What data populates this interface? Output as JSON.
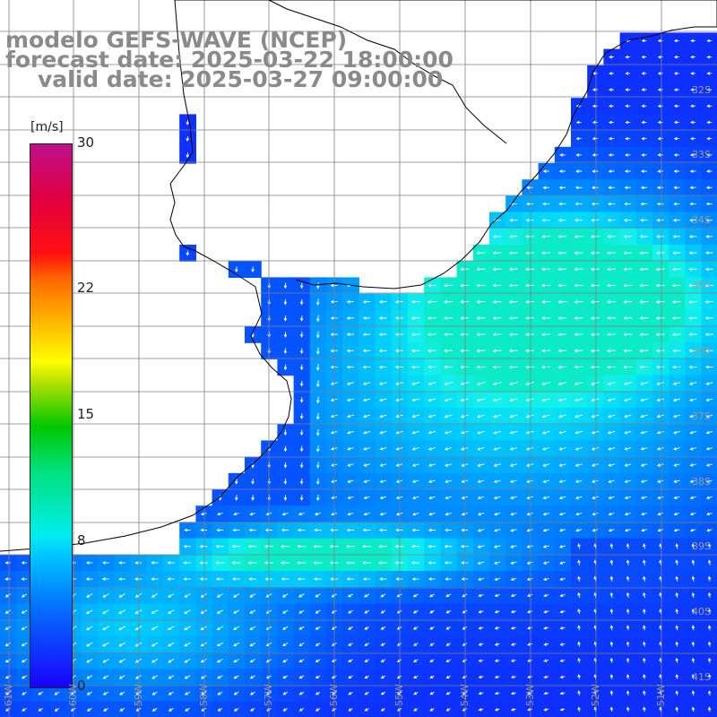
{
  "title": {
    "model": "modelo GEFS-WAVE (NCEP)",
    "forecast": "forecast date: 2025-03-22 18:00:00",
    "valid": "valid date: 2025-03-27 09:00:00"
  },
  "colorbar": {
    "unit": "[m/s]",
    "ticks": [
      "30",
      "22",
      "15",
      "8",
      "0"
    ],
    "tick_values": [
      30,
      22,
      15,
      8,
      0
    ],
    "range": [
      0,
      30
    ],
    "colors": [
      "#1a00ff",
      "#008cff",
      "#00eeee",
      "#00c800",
      "#ffff00",
      "#ff6a00",
      "#ff1010",
      "#c0108a"
    ]
  },
  "map": {
    "latitude_labels": [
      "32S",
      "33S",
      "34S",
      "35S",
      "36S",
      "37S",
      "38S",
      "39S",
      "40S",
      "41S"
    ],
    "longitude_labels": [
      "61W",
      "60W",
      "59W",
      "58W",
      "57W",
      "56W",
      "55W",
      "54W",
      "53W",
      "52W",
      "51W"
    ],
    "grid_color": "#808080",
    "coast_color": "#000000",
    "ocean_colors": {
      "weak": "#0a2aff",
      "medium": "#0aa0ff",
      "strong": "#10e8f0"
    },
    "arrow_color": "#ffffff",
    "field": "wind",
    "legend_note": "arrows show direction"
  }
}
